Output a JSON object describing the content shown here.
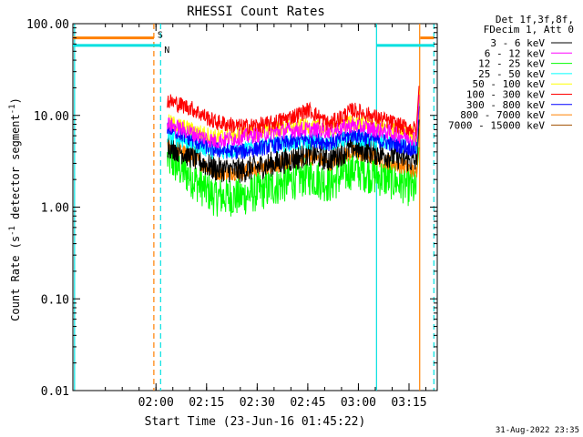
{
  "chart_data": {
    "type": "line",
    "title": "RHESSI Count Rates",
    "xlabel": "Start Time (23-Jun-16 01:45:22)",
    "ylabel_main": "Count Rate (s",
    "ylabel_sup": "-1",
    "ylabel_rest": " detector segment",
    "ylabel_sup2": "-1",
    "ylabel_end": ")",
    "y_scale": "log",
    "ylim": [
      0.01,
      100
    ],
    "y_ticks": [
      {
        "value": 100,
        "label": "100.00"
      },
      {
        "value": 10,
        "label": "10.00"
      },
      {
        "value": 1,
        "label": "1.00"
      },
      {
        "value": 0.1,
        "label": "0.10"
      },
      {
        "value": 0.01,
        "label": "0.01"
      }
    ],
    "x_unit": "minutes since 01:45:22",
    "xlim": [
      -10,
      98
    ],
    "x_ticks": [
      {
        "value": 14.63,
        "label": "02:00"
      },
      {
        "value": 29.63,
        "label": "02:15"
      },
      {
        "value": 44.63,
        "label": "02:30"
      },
      {
        "value": 59.63,
        "label": "02:45"
      },
      {
        "value": 74.63,
        "label": "03:00"
      },
      {
        "value": 89.63,
        "label": "03:15"
      }
    ],
    "legend_header": [
      "Det 1f,3f,8f,",
      "FDecim 1, Att 0"
    ],
    "legend_placement": "right-outside",
    "series": [
      {
        "name": "3 - 6 keV",
        "color": "#000000",
        "x": [
          18,
          25,
          32,
          40,
          48,
          56,
          60,
          66,
          73,
          80,
          88,
          92
        ],
        "values": [
          4.8,
          3.6,
          2.6,
          2.5,
          2.9,
          3.4,
          3.9,
          3.3,
          4.5,
          3.9,
          3.4,
          3.0
        ]
      },
      {
        "name": "6 - 12 keV",
        "color": "#ff00ff",
        "x": [
          18,
          25,
          32,
          40,
          48,
          56,
          60,
          66,
          73,
          80,
          88,
          92
        ],
        "values": [
          8.0,
          6.5,
          5.2,
          5.8,
          6.5,
          7.0,
          7.0,
          6.8,
          7.8,
          7.0,
          6.0,
          5.6
        ]
      },
      {
        "name": "12 - 25 keV",
        "color": "#00ff00",
        "x": [
          18,
          25,
          32,
          40,
          48,
          56,
          60,
          66,
          73,
          80,
          88,
          92
        ],
        "values": [
          3.4,
          2.1,
          1.3,
          1.3,
          1.6,
          2.0,
          2.2,
          1.8,
          2.6,
          2.2,
          1.8,
          1.5
        ]
      },
      {
        "name": "25 - 50 keV",
        "color": "#00ffff",
        "x": [
          18,
          25,
          32,
          40,
          48,
          56,
          60,
          66,
          73,
          80,
          88,
          92
        ],
        "values": [
          6.0,
          5.0,
          4.0,
          4.2,
          4.8,
          5.0,
          5.2,
          5.0,
          5.8,
          5.2,
          4.8,
          4.5
        ]
      },
      {
        "name": "50 - 100 keV",
        "color": "#ffff00",
        "x": [
          18,
          25,
          32,
          40,
          48,
          56,
          60,
          66,
          73,
          80,
          88,
          92
        ],
        "values": [
          8.5,
          7.0,
          5.8,
          6.2,
          7.0,
          7.5,
          7.6,
          7.2,
          8.5,
          7.5,
          6.8,
          6.2
        ]
      },
      {
        "name": "100 - 300 keV",
        "color": "#ff0000",
        "x": [
          18,
          25,
          32,
          40,
          48,
          56,
          60,
          66,
          73,
          80,
          88,
          92
        ],
        "values": [
          14.5,
          12.0,
          8.5,
          7.5,
          8.0,
          10.0,
          11.5,
          8.0,
          11.5,
          9.5,
          7.5,
          7.0
        ]
      },
      {
        "name": "300 - 800 keV",
        "color": "#0000ff",
        "x": [
          18,
          25,
          32,
          40,
          48,
          56,
          60,
          66,
          73,
          80,
          88,
          92
        ],
        "values": [
          7.5,
          5.5,
          4.2,
          4.0,
          4.6,
          5.2,
          5.6,
          5.0,
          6.2,
          5.4,
          4.6,
          4.2
        ]
      },
      {
        "name": "800 - 7000 keV",
        "color": "#ff8000",
        "x": [
          18,
          25,
          32,
          40,
          48,
          56,
          60,
          66,
          73,
          80,
          88,
          92
        ],
        "values": [
          5.0,
          3.6,
          2.4,
          2.4,
          2.8,
          3.2,
          3.6,
          3.0,
          4.0,
          3.4,
          2.8,
          2.4
        ]
      },
      {
        "name": "7000 - 15000 keV",
        "color": "#a05000",
        "x": [],
        "values": []
      }
    ],
    "flags": [
      {
        "label": "S",
        "color": "#ff8000",
        "value": 70,
        "segments": [
          [
            -10,
            14
          ]
        ]
      },
      {
        "label": "N",
        "color": "#00e0e0",
        "value": 58,
        "segments": [
          [
            -10,
            16
          ]
        ]
      }
    ],
    "flag_segments_right": [
      {
        "color": "#ff8000",
        "value": 70,
        "segments": [
          [
            93,
            97
          ]
        ]
      },
      {
        "color": "#00e0e0",
        "value": 58,
        "segments": [
          [
            80,
            97
          ]
        ]
      }
    ],
    "vertical_lines": [
      {
        "x": -9.5,
        "color": "#00e0e0",
        "style": "solid"
      },
      {
        "x": 14,
        "color": "#ff8000",
        "style": "dashed"
      },
      {
        "x": 16,
        "color": "#00e0e0",
        "style": "dashed"
      },
      {
        "x": 80,
        "color": "#00e0e0",
        "style": "solid"
      },
      {
        "x": 92.8,
        "color": "#ff8000",
        "style": "solid"
      },
      {
        "x": 97,
        "color": "#00e0e0",
        "style": "dashed"
      }
    ],
    "timestamp": "31-Aug-2022 23:35"
  }
}
